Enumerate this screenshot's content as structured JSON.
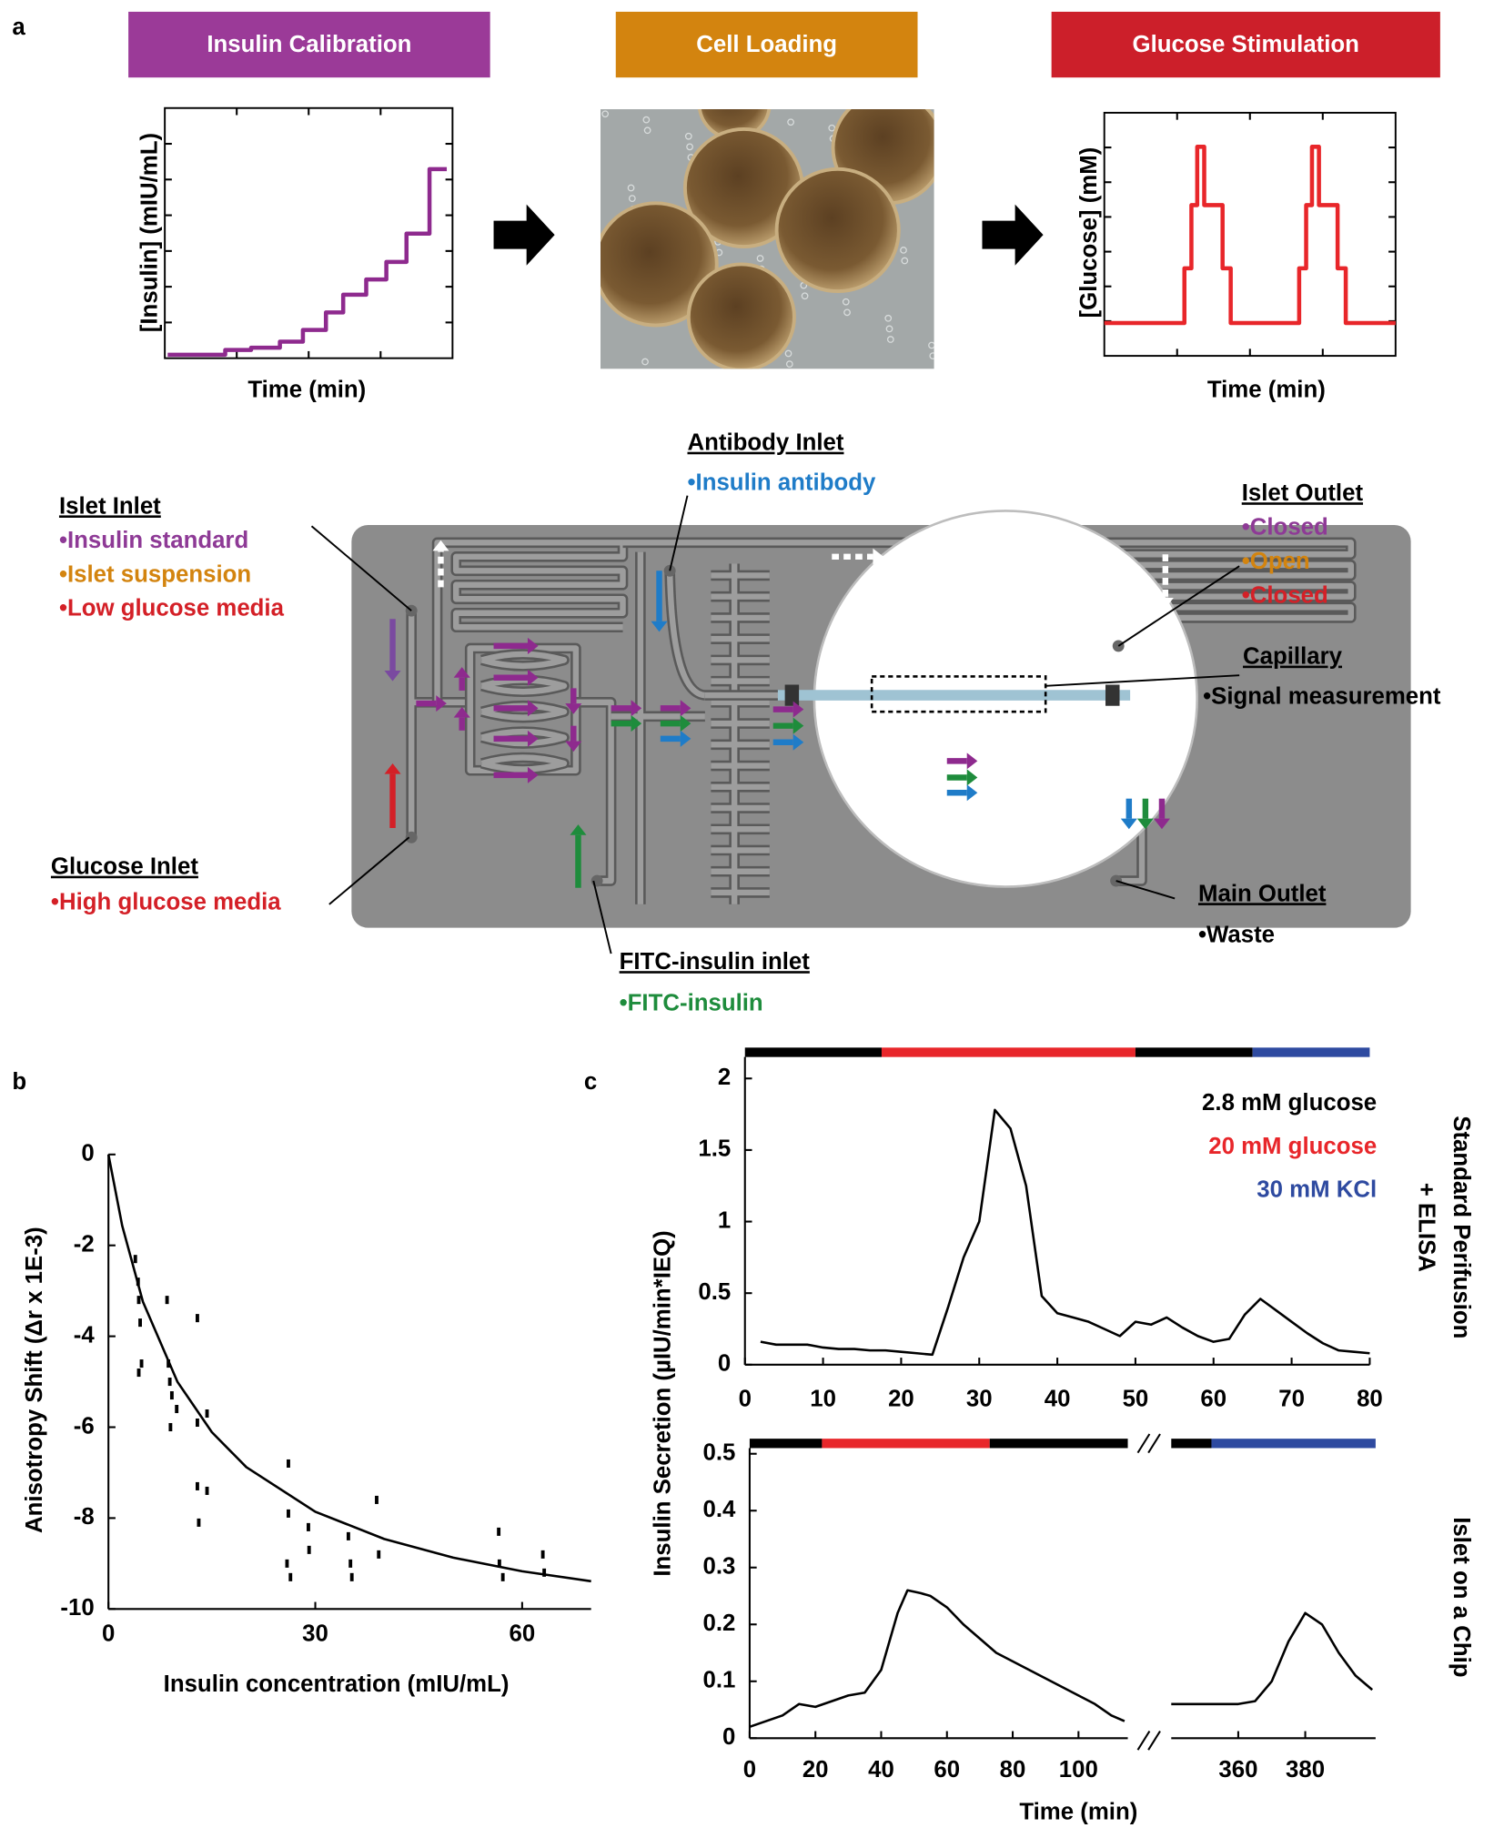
{
  "panel_labels": [
    "a",
    "b",
    "c"
  ],
  "steps": [
    {
      "title": "Insulin Calibration",
      "color": "#9b3a98"
    },
    {
      "title": "Cell Loading",
      "color": "#d3840f"
    },
    {
      "title": "Glucose Stimulation",
      "color": "#cc1f2a"
    }
  ],
  "chip": {
    "islet_inlet": {
      "title": "Islet Inlet",
      "items": [
        {
          "text": "•Insulin standard",
          "color": "#8e3a96"
        },
        {
          "text": "•Islet suspension",
          "color": "#d3840f"
        },
        {
          "text": "•Low glucose media",
          "color": "#d42027"
        }
      ]
    },
    "glucose_inlet": {
      "title": "Glucose Inlet",
      "items": [
        {
          "text": "•High glucose media",
          "color": "#d42027"
        }
      ]
    },
    "antibody_inlet": {
      "title": "Antibody Inlet",
      "items": [
        {
          "text": "•Insulin antibody",
          "color": "#1f7cc8"
        }
      ]
    },
    "fitc_inlet": {
      "title": "FITC-insulin inlet",
      "items": [
        {
          "text": "•FITC-insulin",
          "color": "#1e8c3c"
        }
      ]
    },
    "islet_outlet": {
      "title": "Islet Outlet",
      "items": [
        {
          "text": "•Closed",
          "color": "#8e3a96"
        },
        {
          "text": "•Open",
          "color": "#d3840f"
        },
        {
          "text": "•Closed",
          "color": "#d42027"
        }
      ]
    },
    "capillary": {
      "title": "Capillary",
      "items": [
        {
          "text": "•Signal measurement",
          "color": "#000000"
        }
      ]
    },
    "main_outlet": {
      "title": "Main Outlet",
      "items": [
        {
          "text": "•Waste",
          "color": "#000000"
        }
      ]
    }
  },
  "chart_data": [
    {
      "type": "line",
      "step": true,
      "frame": true,
      "ylabel": "[Insulin] (mIU/mL)",
      "xlabel": "Time (min)",
      "color": "#8e2a8e",
      "xlim": [
        0,
        100
      ],
      "ylim": [
        0,
        100
      ],
      "x": [
        1,
        21,
        30,
        40,
        48,
        56,
        62,
        70,
        77,
        84,
        92,
        98
      ],
      "values": [
        1.4,
        3.3,
        4.2,
        6.6,
        11.3,
        18.3,
        25.4,
        31.5,
        38.5,
        49.8,
        75.6,
        75.6
      ]
    },
    {
      "type": "line",
      "step": true,
      "frame": true,
      "ylabel": "[Glucose] (mM)",
      "xlabel": "Time (min)",
      "color": "#e8262a",
      "xlim": [
        0,
        100
      ],
      "ylim": [
        0,
        100
      ],
      "x": [
        0,
        27.5,
        29.9,
        31.9,
        34.3,
        40.6,
        43.4,
        66.9,
        69.3,
        71.3,
        73.7,
        80.1,
        82.9,
        100
      ],
      "values": [
        13.5,
        36,
        62,
        86,
        62,
        36,
        13.5,
        36,
        62,
        86,
        62,
        36,
        13.5,
        13.5
      ]
    },
    {
      "type": "scatter",
      "ylabel": "Anisotropy Shift (Δr x 1E-3)",
      "xlabel": "Insulin concentration (mIU/mL)",
      "color": "#000000",
      "xlim": [
        0,
        70
      ],
      "ylim": [
        -10,
        0
      ],
      "xticks": [
        0,
        30,
        60
      ],
      "yticks": [
        0,
        -2,
        -4,
        -6,
        -8,
        -10
      ],
      "x": [
        3.9,
        4.3,
        4.4,
        4.6,
        4.8,
        4.4,
        8.5,
        8.7,
        8.9,
        9.2,
        9.0,
        9.9,
        12.9,
        12.9,
        12.9,
        13.1,
        14.3,
        14.3,
        26.1,
        26.1,
        25.9,
        26.4,
        29.0,
        29.1,
        34.8,
        35.1,
        35.3,
        38.9,
        39.2,
        56.6,
        56.7,
        57.2,
        63.0,
        63.2
      ],
      "values": [
        -2.3,
        -2.8,
        -3.2,
        -3.7,
        -4.6,
        -4.8,
        -3.2,
        -4.6,
        -5.0,
        -5.3,
        -6.0,
        -5.6,
        -3.6,
        -5.9,
        -7.3,
        -8.1,
        -5.7,
        -7.4,
        -6.8,
        -7.9,
        -9.0,
        -9.3,
        -8.2,
        -8.7,
        -8.4,
        -9.0,
        -9.3,
        -7.6,
        -8.8,
        -8.3,
        -9.0,
        -9.3,
        -8.8,
        -9.2
      ],
      "fit": {
        "x": [
          0,
          2,
          5,
          10,
          15,
          20,
          30,
          40,
          50,
          60,
          70
        ],
        "values": [
          0,
          -1.57,
          -3.24,
          -5.0,
          -6.11,
          -6.88,
          -7.86,
          -8.46,
          -8.87,
          -9.17,
          -9.39
        ]
      }
    },
    {
      "type": "line",
      "color": "#000000",
      "xlim": [
        0,
        80
      ],
      "ylim": [
        0,
        2.15
      ],
      "xticks": [
        0,
        10,
        20,
        30,
        40,
        50,
        60,
        70,
        80
      ],
      "yticks": [
        0,
        0.5,
        1,
        1.5,
        2
      ],
      "side_label": [
        "Standard Perifusion",
        "+ ELISA"
      ],
      "periods": [
        {
          "start": 0,
          "end": 17.5,
          "color": "#000000"
        },
        {
          "start": 17.5,
          "end": 50,
          "color": "#e8262a"
        },
        {
          "start": 50,
          "end": 65,
          "color": "#000000"
        },
        {
          "start": 65,
          "end": 80,
          "color": "#2e4aa0"
        }
      ],
      "legend": [
        {
          "label": "2.8 mM glucose",
          "color": "#000000"
        },
        {
          "label": "20 mM glucose",
          "color": "#e8262a"
        },
        {
          "label": "30 mM KCl",
          "color": "#2e4aa0"
        }
      ],
      "x": [
        2,
        4,
        6,
        8,
        10,
        12,
        14,
        16,
        18,
        20,
        22,
        24,
        26,
        28,
        30,
        32,
        34,
        36,
        38,
        40,
        42,
        44,
        46,
        48,
        50,
        52,
        54,
        56,
        58,
        60,
        62,
        64,
        66,
        68,
        70,
        72,
        74,
        76,
        78,
        80
      ],
      "values": [
        0.16,
        0.14,
        0.14,
        0.14,
        0.12,
        0.11,
        0.11,
        0.1,
        0.1,
        0.09,
        0.08,
        0.07,
        0.4,
        0.75,
        1.0,
        1.78,
        1.65,
        1.25,
        0.48,
        0.36,
        0.33,
        0.3,
        0.25,
        0.2,
        0.3,
        0.28,
        0.33,
        0.26,
        0.2,
        0.16,
        0.18,
        0.35,
        0.46,
        0.38,
        0.3,
        0.22,
        0.15,
        0.1,
        0.09,
        0.08
      ]
    },
    {
      "type": "line",
      "color": "#000000",
      "ylabel": "Insulin Secretion (µIU/min*IEQ)",
      "xlabel": "Time (min)",
      "xlim": [
        [
          0,
          115
        ],
        [
          340,
          401
        ]
      ],
      "ylim": [
        0,
        0.51
      ],
      "xticks": [
        0,
        20,
        40,
        60,
        80,
        100,
        360,
        380
      ],
      "yticks": [
        0,
        0.1,
        0.2,
        0.3,
        0.4,
        0.5
      ],
      "side_label": [
        "Islet on a Chip"
      ],
      "periods": [
        {
          "start": 0,
          "end": 22,
          "color": "#000000"
        },
        {
          "start": 22,
          "end": 73,
          "color": "#e8262a"
        },
        {
          "start": 73,
          "end": 352,
          "color": "#000000"
        },
        {
          "start": 352,
          "end": 401,
          "color": "#2e4aa0"
        }
      ],
      "x": [
        0,
        5,
        10,
        15,
        20,
        25,
        30,
        35,
        40,
        45,
        48,
        52,
        55,
        60,
        65,
        70,
        75,
        80,
        85,
        90,
        95,
        100,
        105,
        110,
        114,
        340,
        350,
        360,
        365,
        370,
        375,
        380,
        385,
        390,
        395,
        400
      ],
      "values": [
        0.02,
        0.03,
        0.04,
        0.06,
        0.055,
        0.065,
        0.075,
        0.08,
        0.12,
        0.22,
        0.26,
        0.255,
        0.25,
        0.23,
        0.2,
        0.175,
        0.15,
        0.135,
        0.12,
        0.105,
        0.09,
        0.075,
        0.06,
        0.04,
        0.03,
        0.06,
        0.06,
        0.06,
        0.065,
        0.1,
        0.17,
        0.22,
        0.2,
        0.15,
        0.11,
        0.085
      ]
    }
  ]
}
